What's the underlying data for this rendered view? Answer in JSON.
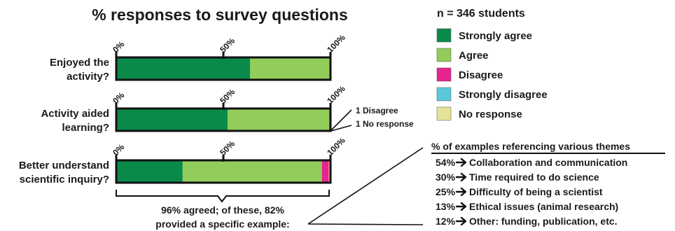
{
  "chart_data": {
    "type": "bar",
    "title": "% responses to survey questions",
    "sample_note": "n = 346 students",
    "categories": [
      "Enjoyed the activity?",
      "Activity aided learning?",
      "Better understand scientific inquiry?"
    ],
    "category_lines": [
      [
        "Enjoyed the",
        "activity?"
      ],
      [
        "Activity aided",
        "learning?"
      ],
      [
        "Better understand",
        "scientific inquiry?"
      ]
    ],
    "tick_labels": [
      "0%",
      "50%",
      "100%"
    ],
    "xlim": [
      0,
      100
    ],
    "stacked": true,
    "orientation": "horizontal",
    "series": [
      {
        "name": "Strongly agree",
        "color": "#0a8a4a",
        "values": [
          62.5,
          52,
          31
        ]
      },
      {
        "name": "Agree",
        "color": "#92cc5a",
        "values": [
          37.5,
          47.4,
          65
        ]
      },
      {
        "name": "Disagree",
        "color": "#e6238f",
        "values": [
          0,
          0.3,
          3.2
        ]
      },
      {
        "name": "Strongly disagree",
        "color": "#5bc8d8",
        "values": [
          0,
          0,
          0
        ]
      },
      {
        "name": "No response",
        "color": "#e6e29a",
        "values": [
          0,
          0.3,
          0.8
        ]
      }
    ],
    "legend_position": "top-right",
    "annotations": {
      "bar2_notes": [
        "1 Disagree",
        "1 No response"
      ],
      "bar3_brace_text": [
        "96% agreed; of these, 82%",
        "provided a specific example:"
      ]
    },
    "themes": {
      "title": "% of examples referencing various themes",
      "items": [
        {
          "pct": "54%",
          "label": "Collaboration and communication"
        },
        {
          "pct": "30%",
          "label": "Time required to do science"
        },
        {
          "pct": "25%",
          "label": "Difficulty of being a scientist"
        },
        {
          "pct": "13%",
          "label": "Ethical issues (animal research)"
        },
        {
          "pct": "12%",
          "label": "Other: funding, publication, etc."
        }
      ]
    }
  }
}
